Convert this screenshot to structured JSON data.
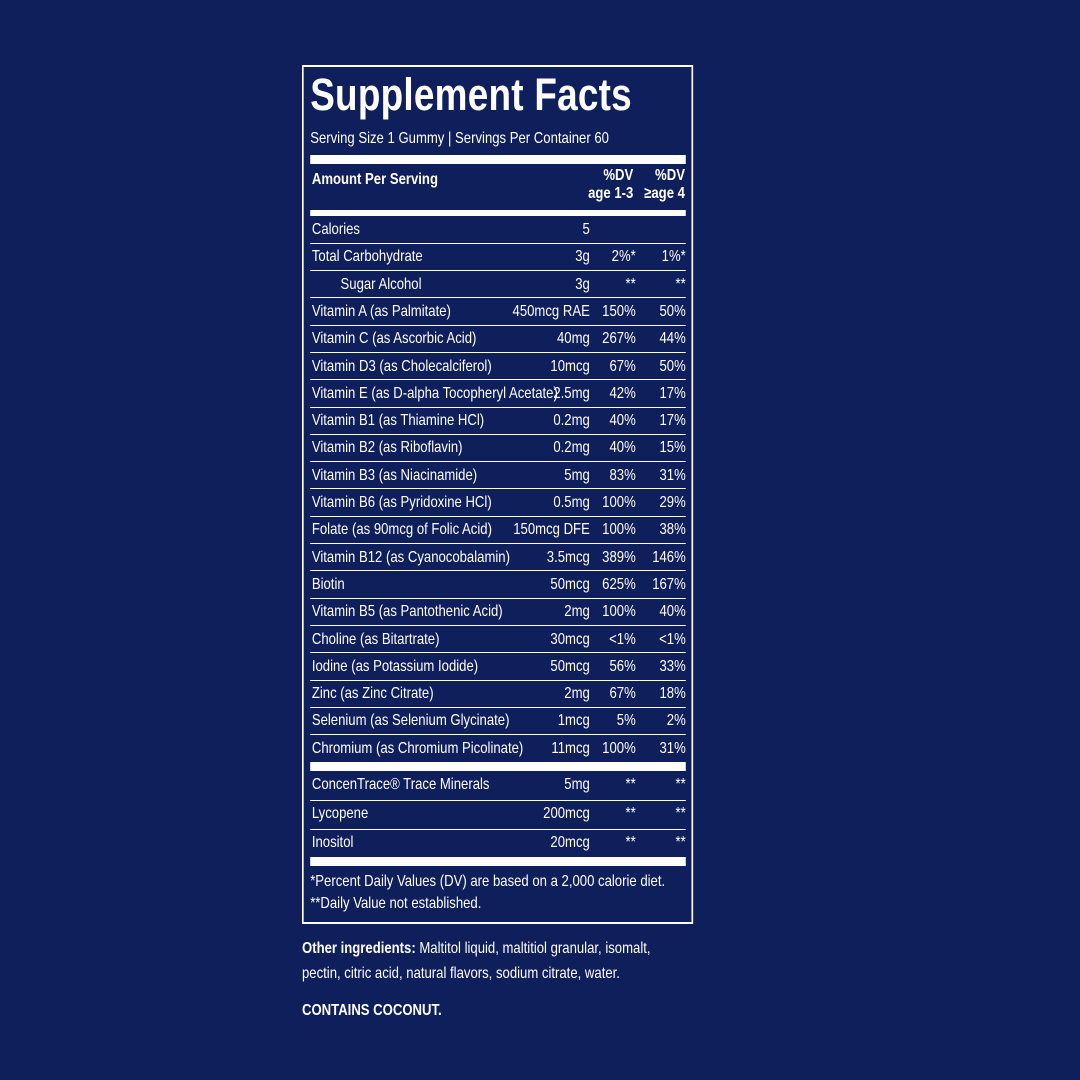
{
  "title": "Supplement Facts",
  "serving": "Serving Size 1 Gummy | Servings Per Container 60",
  "header": {
    "amount_per_serving": "Amount Per Serving",
    "dv1_line1": "%DV",
    "dv1_line2": "age 1-3",
    "dv2_line1": "%DV",
    "dv2_line2": "≥age 4"
  },
  "rows": [
    {
      "label": "Calories",
      "amount": "5",
      "dv1": "",
      "dv2": ""
    },
    {
      "label": "Total Carbohydrate",
      "amount": "3g",
      "dv1": "2%*",
      "dv2": "1%*"
    },
    {
      "label": "Sugar Alcohol",
      "amount": "3g",
      "dv1": "**",
      "dv2": "**",
      "indent": true
    },
    {
      "label": "Vitamin A (as Palmitate)",
      "amount": "450mcg RAE",
      "dv1": "150%",
      "dv2": "50%"
    },
    {
      "label": "Vitamin C (as Ascorbic Acid)",
      "amount": "40mg",
      "dv1": "267%",
      "dv2": "44%"
    },
    {
      "label": "Vitamin D3 (as Cholecalciferol)",
      "amount": "10mcg",
      "dv1": "67%",
      "dv2": "50%"
    },
    {
      "label": "Vitamin E (as D-alpha Tocopheryl Acetate)",
      "amount": "2.5mg",
      "dv1": "42%",
      "dv2": "17%"
    },
    {
      "label": "Vitamin B1 (as Thiamine HCl)",
      "amount": "0.2mg",
      "dv1": "40%",
      "dv2": "17%"
    },
    {
      "label": "Vitamin B2 (as Riboflavin)",
      "amount": "0.2mg",
      "dv1": "40%",
      "dv2": "15%"
    },
    {
      "label": "Vitamin B3 (as Niacinamide)",
      "amount": "5mg",
      "dv1": "83%",
      "dv2": "31%"
    },
    {
      "label": "Vitamin B6 (as Pyridoxine HCl)",
      "amount": "0.5mg",
      "dv1": "100%",
      "dv2": "29%"
    },
    {
      "label": "Folate (as 90mcg of Folic Acid)",
      "amount": "150mcg DFE",
      "dv1": "100%",
      "dv2": "38%"
    },
    {
      "label": "Vitamin B12 (as Cyanocobalamin)",
      "amount": "3.5mcg",
      "dv1": "389%",
      "dv2": "146%"
    },
    {
      "label": "Biotin",
      "amount": "50mcg",
      "dv1": "625%",
      "dv2": "167%"
    },
    {
      "label": "Vitamin B5 (as Pantothenic Acid)",
      "amount": "2mg",
      "dv1": "100%",
      "dv2": "40%"
    },
    {
      "label": "Choline (as Bitartrate)",
      "amount": "30mcg",
      "dv1": "<1%",
      "dv2": "<1%"
    },
    {
      "label": "Iodine (as Potassium Iodide)",
      "amount": "50mcg",
      "dv1": "56%",
      "dv2": "33%"
    },
    {
      "label": "Zinc (as Zinc Citrate)",
      "amount": "2mg",
      "dv1": "67%",
      "dv2": "18%"
    },
    {
      "label": "Selenium (as Selenium Glycinate)",
      "amount": "1mcg",
      "dv1": "5%",
      "dv2": "2%"
    },
    {
      "label": "Chromium (as Chromium Picolinate)",
      "amount": "11mcg",
      "dv1": "100%",
      "dv2": "31%"
    }
  ],
  "other_rows": [
    {
      "label": "ConcenTrace® Trace Minerals",
      "amount": "5mg",
      "dv1": "**",
      "dv2": "**"
    },
    {
      "label": "Lycopene",
      "amount": "200mcg",
      "dv1": "**",
      "dv2": "**"
    },
    {
      "label": "Inositol",
      "amount": "20mcg",
      "dv1": "**",
      "dv2": "**"
    }
  ],
  "footnotes": [
    "*Percent Daily Values (DV) are based on a 2,000 calorie diet.",
    "**Daily Value not established."
  ],
  "other_ingredients": {
    "label": "Other ingredients:",
    "line1": " Maltitol liquid, maltitiol granular, isomalt,",
    "line2": "pectin, citric acid, natural flavors, sodium citrate, water."
  },
  "allergen": "CONTAINS COCONUT.",
  "colors": {
    "background": "#0f1f5c",
    "text": "#ffffff"
  }
}
